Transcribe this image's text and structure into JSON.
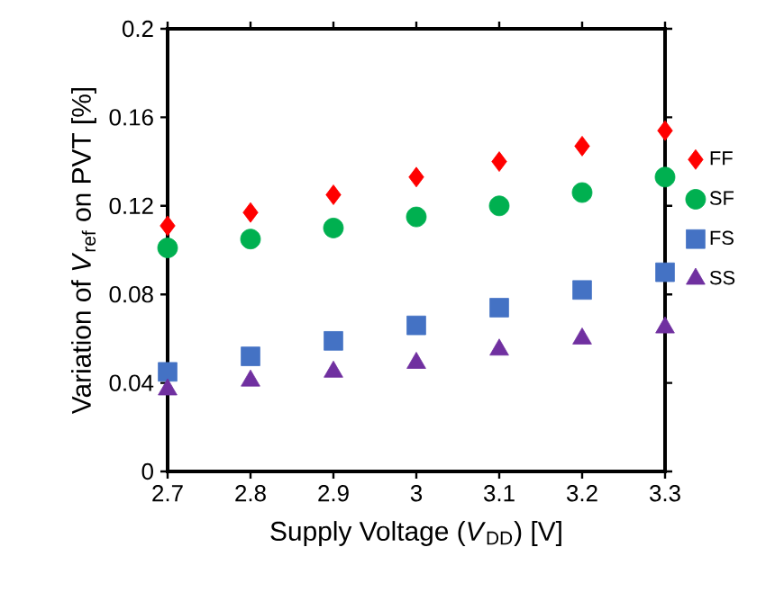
{
  "chart_data": {
    "type": "scatter",
    "xlabel": "Supply Voltage (*V*$_{DD}$) [V]",
    "ylabel": "Variation of *V*$_{ref}$ on PVT [%]",
    "x": [
      2.7,
      2.8,
      2.9,
      3,
      3.1,
      3.2,
      3.3
    ],
    "series": [
      {
        "name": "FF",
        "color": "#ff0000",
        "marker": "diamond",
        "values": [
          0.111,
          0.117,
          0.125,
          0.133,
          0.14,
          0.147,
          0.154
        ]
      },
      {
        "name": "SF",
        "color": "#00b050",
        "marker": "circle",
        "values": [
          0.101,
          0.105,
          0.11,
          0.115,
          0.12,
          0.126,
          0.133
        ]
      },
      {
        "name": "FS",
        "color": "#4472c4",
        "marker": "square",
        "values": [
          0.045,
          0.052,
          0.059,
          0.066,
          0.074,
          0.082,
          0.09
        ]
      },
      {
        "name": "SS",
        "color": "#7030a0",
        "marker": "triangle",
        "values": [
          0.037,
          0.041,
          0.045,
          0.049,
          0.055,
          0.06,
          0.065
        ]
      }
    ],
    "xlim": [
      2.7,
      3.3
    ],
    "ylim": [
      0,
      0.2
    ],
    "xticks": [
      2.7,
      2.8,
      2.9,
      3,
      3.1,
      3.2,
      3.3
    ],
    "yticks": [
      0,
      0.04,
      0.08,
      0.12,
      0.16,
      0.2
    ],
    "grid": false,
    "legend": "right"
  }
}
